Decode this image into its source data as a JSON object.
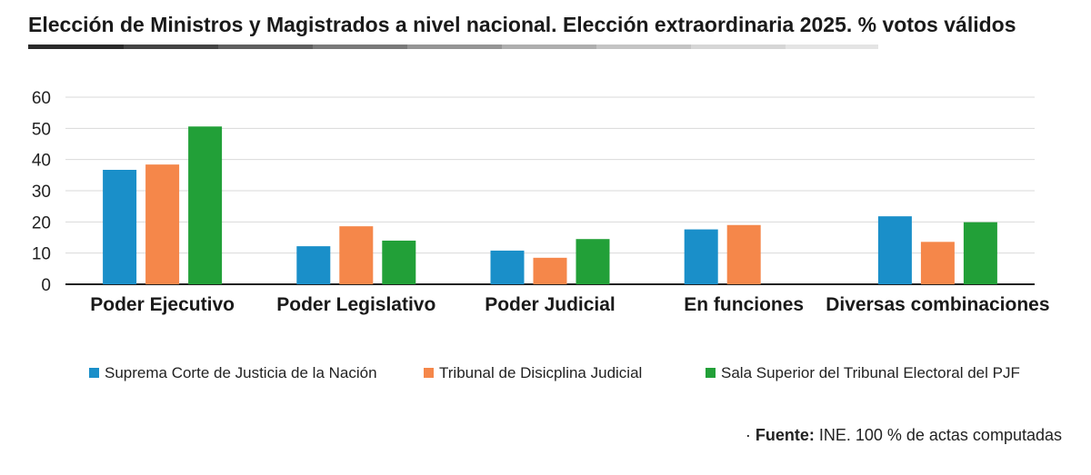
{
  "title": "Elección de Ministros y Magistrados a nivel nacional. Elección extraordinaria 2025. % votos válidos",
  "source": {
    "label": "Fuente:",
    "text": "INE. 100 % de actas computadas"
  },
  "chart_data": {
    "type": "bar",
    "title": "Elección de Ministros y Magistrados a nivel nacional. Elección extraordinaria 2025. % votos válidos",
    "xlabel": "",
    "ylabel": "",
    "ylim": [
      0,
      60
    ],
    "yticks": [
      "0",
      "10",
      "20",
      "30",
      "40",
      "50",
      "60"
    ],
    "grid": true,
    "legend_position": "bottom",
    "categories": [
      "Poder Ejecutivo",
      "Poder Legislativo",
      "Poder Judicial",
      "En funciones",
      "Diversas combinaciones"
    ],
    "series": [
      {
        "name": "Suprema Corte de Justicia de la Nación",
        "color": "#1a8fc9",
        "values": [
          36.7,
          12.2,
          10.8,
          17.6,
          21.8
        ]
      },
      {
        "name": "Tribunal de Disicplina Judicial",
        "color": "#f5874a",
        "values": [
          38.4,
          18.6,
          8.5,
          19.0,
          13.6
        ]
      },
      {
        "name": "Sala Superior del Tribunal Electoral del PJF",
        "color": "#22a038",
        "values": [
          50.6,
          14.0,
          14.5,
          null,
          19.9
        ]
      }
    ]
  }
}
